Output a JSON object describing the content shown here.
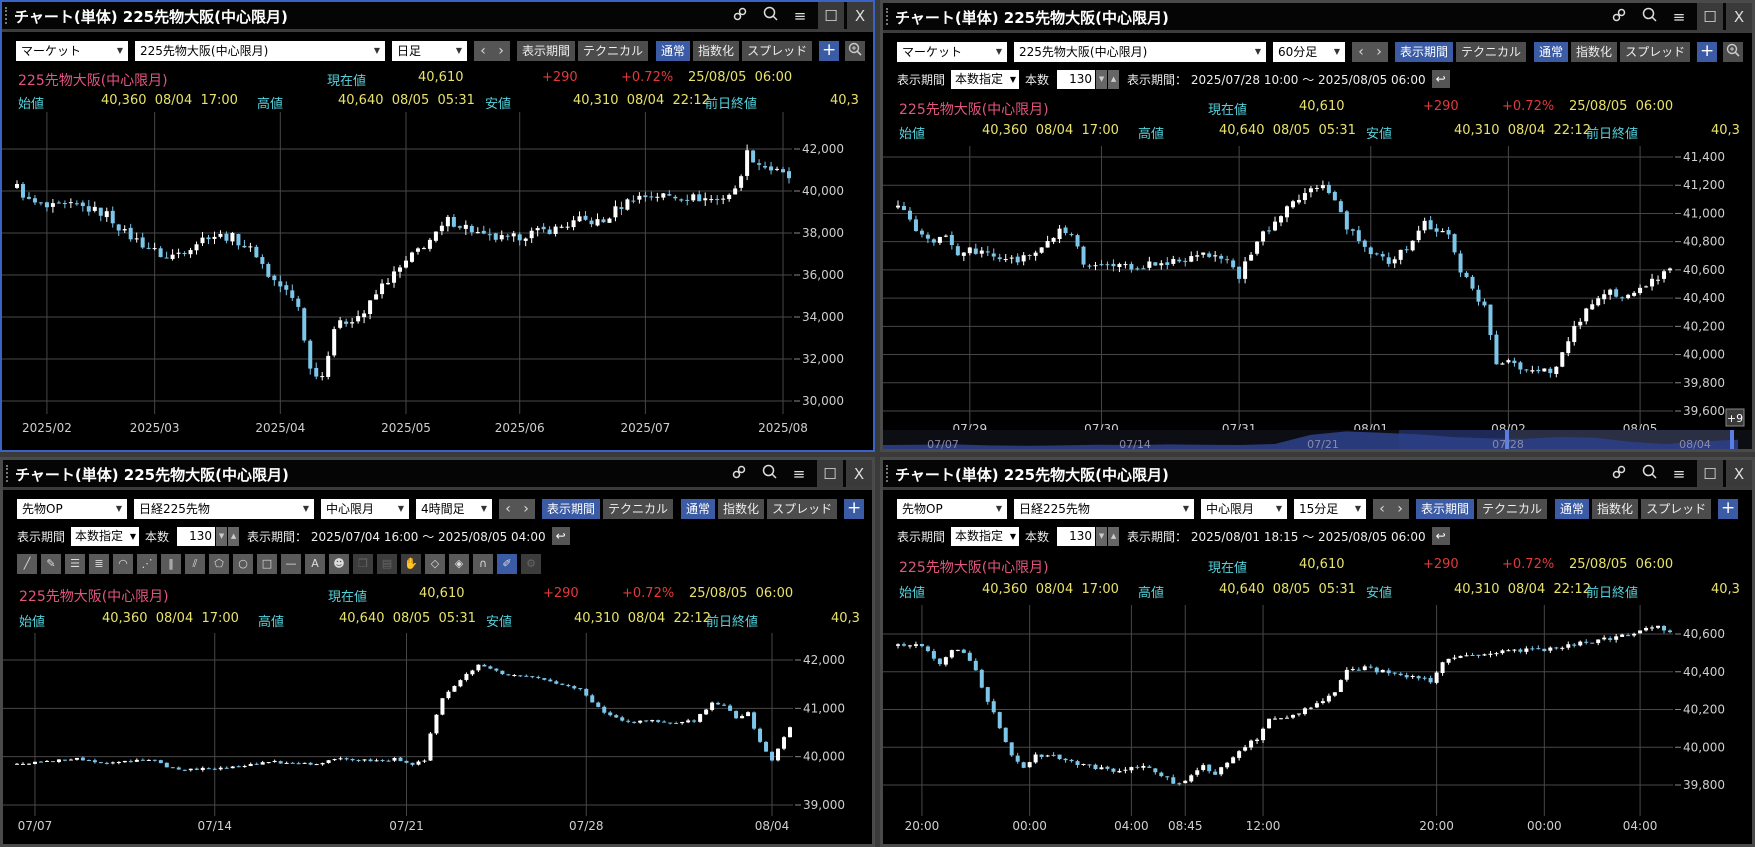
{
  "colors": {
    "up": "#ffffff",
    "down": "#7cc6ea",
    "accent": "#3b5ba5",
    "grid": "#474747",
    "axis_text": "#cfcfcf",
    "navigator": "#2c3f86"
  },
  "quote": {
    "name": "225先物大阪(中心限月)",
    "current_label": "現在値",
    "current": "40,610",
    "change": "+290",
    "change_pct": "+0.72%",
    "datetime": "25/08/05  06:00",
    "open_label": "始値",
    "open": "40,360  08/04  17:00",
    "high_label": "高値",
    "high": "40,640  08/05  05:31",
    "low_label": "安値",
    "low": "40,310  08/04  22:12",
    "prev_label": "前日終値",
    "prev": "40,3"
  },
  "panels": [
    {
      "id": "tl",
      "title": "チャート(単体) 225先物大阪(中心限月)",
      "toolbar": {
        "selects": [
          {
            "value": "マーケット"
          },
          {
            "value": "225先物大阪(中心限月)"
          },
          {
            "value": "日足"
          }
        ],
        "buttons": [
          {
            "label": "表示期間",
            "active": false
          },
          {
            "label": "テクニカル",
            "active": false
          },
          {
            "label": "通常",
            "active": true
          },
          {
            "label": "指数化",
            "active": false
          },
          {
            "label": "スプレッド",
            "active": false
          }
        ]
      },
      "chart_data": {
        "type": "candlestick",
        "bars": 130,
        "timeframe": "日足",
        "y_ticks": [
          30000,
          32000,
          34000,
          36000,
          38000,
          40000,
          42000
        ],
        "x_ticks": [
          {
            "label": "2025/02",
            "index": 5
          },
          {
            "label": "2025/03",
            "index": 23
          },
          {
            "label": "2025/04",
            "index": 44
          },
          {
            "label": "2025/05",
            "index": 65
          },
          {
            "label": "2025/06",
            "index": 84
          },
          {
            "label": "2025/07",
            "index": 105
          },
          {
            "label": "2025/08",
            "index": 128
          }
        ],
        "close_keypoints": [
          [
            0,
            40200
          ],
          [
            2,
            39500
          ],
          [
            5,
            39200
          ],
          [
            10,
            39300
          ],
          [
            15,
            38900
          ],
          [
            18,
            38000
          ],
          [
            22,
            37300
          ],
          [
            25,
            36800
          ],
          [
            28,
            37200
          ],
          [
            32,
            37900
          ],
          [
            36,
            37800
          ],
          [
            40,
            37000
          ],
          [
            42,
            36000
          ],
          [
            45,
            35200
          ],
          [
            47,
            34500
          ],
          [
            49,
            31500
          ],
          [
            51,
            31200
          ],
          [
            53,
            33500
          ],
          [
            55,
            33800
          ],
          [
            58,
            34200
          ],
          [
            61,
            35500
          ],
          [
            64,
            36300
          ],
          [
            67,
            37200
          ],
          [
            70,
            37900
          ],
          [
            72,
            38600
          ],
          [
            75,
            38300
          ],
          [
            78,
            37800
          ],
          [
            82,
            37700
          ],
          [
            86,
            38000
          ],
          [
            90,
            38200
          ],
          [
            94,
            38600
          ],
          [
            98,
            38500
          ],
          [
            100,
            39100
          ],
          [
            103,
            39700
          ],
          [
            107,
            39800
          ],
          [
            112,
            39700
          ],
          [
            117,
            39600
          ],
          [
            120,
            40000
          ],
          [
            122,
            41800
          ],
          [
            124,
            41300
          ],
          [
            127,
            40900
          ],
          [
            129,
            40610
          ]
        ]
      }
    },
    {
      "id": "tr",
      "title": "チャート(単体) 225先物大阪(中心限月)",
      "toolbar": {
        "selects": [
          {
            "value": "マーケット"
          },
          {
            "value": "225先物大阪(中心限月)"
          },
          {
            "value": "60分足"
          }
        ],
        "buttons": [
          {
            "label": "表示期間",
            "active": true
          },
          {
            "label": "テクニカル",
            "active": false
          },
          {
            "label": "通常",
            "active": true
          },
          {
            "label": "指数化",
            "active": false
          },
          {
            "label": "スプレッド",
            "active": false
          }
        ]
      },
      "period": {
        "label": "表示期間",
        "mode": "本数指定",
        "count_label": "本数",
        "count": "130",
        "range": "表示期間： 2025/07/28 10:00 ～ 2025/08/05 06:00"
      },
      "chart_data": {
        "type": "candlestick",
        "bars": 130,
        "timeframe": "60分足",
        "y_ticks": [
          39600,
          39800,
          40000,
          40200,
          40400,
          40600,
          40800,
          41000,
          41200,
          41400
        ],
        "x_ticks": [
          {
            "label": "07/29",
            "index": 12
          },
          {
            "label": "07/30",
            "index": 34
          },
          {
            "label": "07/31",
            "index": 57
          },
          {
            "label": "08/01",
            "index": 79
          },
          {
            "label": "08/02",
            "index": 102
          },
          {
            "label": "08/05",
            "index": 124
          }
        ],
        "close_keypoints": [
          [
            0,
            41050
          ],
          [
            3,
            40900
          ],
          [
            6,
            40800
          ],
          [
            8,
            40850
          ],
          [
            10,
            40700
          ],
          [
            12,
            40750
          ],
          [
            16,
            40700
          ],
          [
            20,
            40650
          ],
          [
            25,
            40800
          ],
          [
            27,
            40900
          ],
          [
            29,
            40850
          ],
          [
            31,
            40650
          ],
          [
            35,
            40650
          ],
          [
            40,
            40620
          ],
          [
            45,
            40650
          ],
          [
            50,
            40700
          ],
          [
            55,
            40700
          ],
          [
            57,
            40550
          ],
          [
            60,
            40800
          ],
          [
            63,
            40950
          ],
          [
            67,
            41100
          ],
          [
            70,
            41200
          ],
          [
            72,
            41150
          ],
          [
            75,
            40900
          ],
          [
            77,
            40800
          ],
          [
            80,
            40700
          ],
          [
            82,
            40650
          ],
          [
            85,
            40750
          ],
          [
            88,
            40950
          ],
          [
            90,
            40850
          ],
          [
            92,
            40850
          ],
          [
            94,
            40600
          ],
          [
            96,
            40450
          ],
          [
            98,
            40350
          ],
          [
            100,
            39950
          ],
          [
            102,
            39950
          ],
          [
            104,
            39900
          ],
          [
            107,
            39900
          ],
          [
            109,
            39850
          ],
          [
            111,
            40000
          ],
          [
            113,
            40200
          ],
          [
            116,
            40350
          ],
          [
            119,
            40450
          ],
          [
            121,
            40400
          ],
          [
            124,
            40480
          ],
          [
            127,
            40550
          ],
          [
            129,
            40610
          ]
        ],
        "navigator": {
          "labels": [
            "07/07",
            "07/14",
            "07/21",
            "07/28",
            "08/04"
          ],
          "values": [
            39850,
            39900,
            39950,
            39800,
            39750,
            39800,
            39900,
            39850,
            39950,
            39900,
            39850,
            40000,
            41300,
            41800,
            41600,
            41400,
            41000,
            40800,
            40750,
            41000,
            40900,
            40300,
            40000,
            40400,
            40600
          ],
          "badge": "+9"
        }
      }
    },
    {
      "id": "bl",
      "title": "チャート(単体) 225先物大阪(中心限月)",
      "toolbar": {
        "selects": [
          {
            "value": "先物OP"
          },
          {
            "value": "日経225先物"
          },
          {
            "value": "中心限月"
          },
          {
            "value": "4時間足"
          }
        ],
        "buttons": [
          {
            "label": "表示期間",
            "active": true
          },
          {
            "label": "テクニカル",
            "active": false
          },
          {
            "label": "通常",
            "active": true
          },
          {
            "label": "指数化",
            "active": false
          },
          {
            "label": "スプレッド",
            "active": false
          }
        ]
      },
      "period": {
        "label": "表示期間",
        "mode": "本数指定",
        "count_label": "本数",
        "count": "130",
        "range": "表示期間： 2025/07/04 16:00 ～ 2025/08/05 04:00"
      },
      "drawing_tools": [
        "trendline-icon",
        "ruler-icon",
        "hline3-icon",
        "hline5-icon",
        "fan-icon",
        "gann-icon",
        "vlines-icon",
        "channel-icon",
        "pentagon-icon",
        "circle-icon",
        "rectangle-icon",
        "hline-icon",
        "text-icon",
        "stamp-icon",
        "copy-icon",
        "list-icon",
        "hand-icon",
        "eraser-icon",
        "eraser-all-icon",
        "magnet-icon",
        "lock-pen-icon",
        "gear-icon"
      ],
      "chart_data": {
        "type": "candlestick",
        "bars": 130,
        "timeframe": "4時間足",
        "y_ticks": [
          39000,
          40000,
          41000,
          42000
        ],
        "x_ticks": [
          {
            "label": "07/07",
            "index": 3
          },
          {
            "label": "07/14",
            "index": 33
          },
          {
            "label": "07/21",
            "index": 65
          },
          {
            "label": "07/28",
            "index": 95
          },
          {
            "label": "08/04",
            "index": 126
          }
        ],
        "close_keypoints": [
          [
            0,
            39850
          ],
          [
            5,
            39900
          ],
          [
            10,
            39950
          ],
          [
            14,
            39850
          ],
          [
            18,
            39900
          ],
          [
            22,
            39950
          ],
          [
            25,
            39800
          ],
          [
            28,
            39700
          ],
          [
            30,
            39750
          ],
          [
            34,
            39750
          ],
          [
            38,
            39800
          ],
          [
            42,
            39900
          ],
          [
            46,
            39850
          ],
          [
            50,
            39850
          ],
          [
            53,
            39950
          ],
          [
            56,
            39950
          ],
          [
            60,
            39900
          ],
          [
            63,
            39950
          ],
          [
            66,
            39850
          ],
          [
            68,
            39900
          ],
          [
            69,
            40500
          ],
          [
            71,
            41200
          ],
          [
            74,
            41600
          ],
          [
            77,
            41900
          ],
          [
            79,
            41800
          ],
          [
            82,
            41700
          ],
          [
            85,
            41650
          ],
          [
            88,
            41600
          ],
          [
            91,
            41500
          ],
          [
            94,
            41400
          ],
          [
            96,
            41100
          ],
          [
            99,
            40850
          ],
          [
            102,
            40700
          ],
          [
            106,
            40750
          ],
          [
            110,
            40700
          ],
          [
            113,
            40750
          ],
          [
            116,
            41100
          ],
          [
            118,
            41050
          ],
          [
            120,
            40800
          ],
          [
            122,
            40900
          ],
          [
            124,
            40300
          ],
          [
            126,
            39900
          ],
          [
            128,
            40400
          ],
          [
            129,
            40610
          ]
        ]
      }
    },
    {
      "id": "br",
      "title": "チャート(単体) 225先物大阪(中心限月)",
      "toolbar": {
        "selects": [
          {
            "value": "先物OP"
          },
          {
            "value": "日経225先物"
          },
          {
            "value": "中心限月"
          },
          {
            "value": "15分足"
          }
        ],
        "buttons": [
          {
            "label": "表示期間",
            "active": true
          },
          {
            "label": "テクニカル",
            "active": false
          },
          {
            "label": "通常",
            "active": true
          },
          {
            "label": "指数化",
            "active": false
          },
          {
            "label": "スプレッド",
            "active": false
          }
        ]
      },
      "period": {
        "label": "表示期間",
        "mode": "本数指定",
        "count_label": "本数",
        "count": "130",
        "range": "表示期間： 2025/08/01 18:15 ～ 2025/08/05 06:00"
      },
      "chart_data": {
        "type": "candlestick",
        "bars": 130,
        "timeframe": "15分足",
        "y_ticks": [
          39800,
          40000,
          40200,
          40400,
          40600
        ],
        "x_ticks": [
          {
            "label": "20:00",
            "index": 4
          },
          {
            "label": "00:00",
            "index": 22
          },
          {
            "label": "04:00",
            "index": 39
          },
          {
            "label": "08:45",
            "index": 48
          },
          {
            "label": "12:00",
            "index": 61
          },
          {
            "label": "20:00",
            "index": 90
          },
          {
            "label": "00:00",
            "index": 108
          },
          {
            "label": "04:00",
            "index": 124
          }
        ],
        "close_keypoints": [
          [
            0,
            40540
          ],
          [
            3,
            40550
          ],
          [
            5,
            40500
          ],
          [
            7,
            40450
          ],
          [
            9,
            40520
          ],
          [
            11,
            40500
          ],
          [
            13,
            40400
          ],
          [
            15,
            40250
          ],
          [
            17,
            40100
          ],
          [
            19,
            39950
          ],
          [
            21,
            39900
          ],
          [
            23,
            39960
          ],
          [
            26,
            39950
          ],
          [
            29,
            39920
          ],
          [
            32,
            39900
          ],
          [
            35,
            39880
          ],
          [
            38,
            39880
          ],
          [
            41,
            39900
          ],
          [
            44,
            39850
          ],
          [
            47,
            39800
          ],
          [
            49,
            39850
          ],
          [
            51,
            39900
          ],
          [
            53,
            39850
          ],
          [
            56,
            39950
          ],
          [
            58,
            40000
          ],
          [
            60,
            40050
          ],
          [
            62,
            40150
          ],
          [
            65,
            40150
          ],
          [
            68,
            40200
          ],
          [
            71,
            40250
          ],
          [
            73,
            40300
          ],
          [
            75,
            40400
          ],
          [
            78,
            40420
          ],
          [
            81,
            40400
          ],
          [
            84,
            40380
          ],
          [
            87,
            40370
          ],
          [
            89,
            40350
          ],
          [
            91,
            40450
          ],
          [
            93,
            40470
          ],
          [
            96,
            40480
          ],
          [
            100,
            40500
          ],
          [
            104,
            40510
          ],
          [
            108,
            40520
          ],
          [
            112,
            40540
          ],
          [
            116,
            40560
          ],
          [
            120,
            40580
          ],
          [
            124,
            40620
          ],
          [
            127,
            40640
          ],
          [
            129,
            40610
          ]
        ]
      }
    }
  ]
}
